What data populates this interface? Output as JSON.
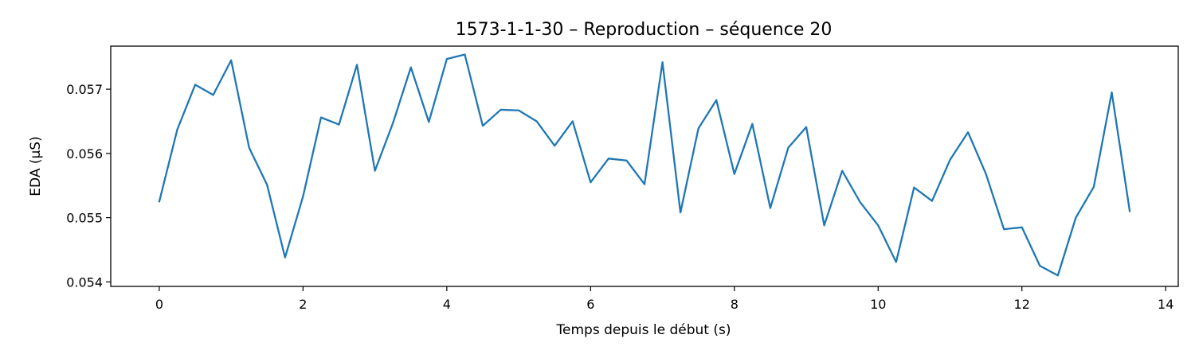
{
  "chart_data": {
    "type": "line",
    "title": "1573-1-1-30 – Reproduction – séquence 20",
    "xlabel": "Temps depuis le début (s)",
    "ylabel": "EDA (µS)",
    "xlim": [
      -0.675,
      14.175
    ],
    "ylim": [
      0.05393,
      0.05767
    ],
    "x_ticks": [
      0,
      2,
      4,
      6,
      8,
      10,
      12,
      14
    ],
    "y_ticks": [
      0.054,
      0.055,
      0.056,
      0.057
    ],
    "x_tick_labels": [
      "0",
      "2",
      "4",
      "6",
      "8",
      "10",
      "12",
      "14"
    ],
    "y_tick_labels": [
      "0.054",
      "0.055",
      "0.056",
      "0.057"
    ],
    "grid": false,
    "series": [
      {
        "color": "#1f77b4",
        "x": [
          0,
          0.25,
          0.5,
          0.75,
          1,
          1.25,
          1.5,
          1.75,
          2,
          2.25,
          2.5,
          2.75,
          3,
          3.25,
          3.5,
          3.75,
          4,
          4.25,
          4.5,
          4.75,
          5,
          5.25,
          5.5,
          5.75,
          6,
          6.25,
          6.5,
          6.75,
          7,
          7.25,
          7.5,
          7.75,
          8,
          8.25,
          8.5,
          8.75,
          9,
          9.25,
          9.5,
          9.75,
          10,
          10.25,
          10.5,
          10.75,
          11,
          11.25,
          11.5,
          11.75,
          12,
          12.25,
          12.5,
          12.75,
          13,
          13.25,
          13.5
        ],
        "values": [
          0.05525,
          0.05637,
          0.05707,
          0.05691,
          0.05745,
          0.05609,
          0.05551,
          0.05438,
          0.05533,
          0.05656,
          0.05645,
          0.05738,
          0.05573,
          0.05647,
          0.05734,
          0.05649,
          0.05747,
          0.05754,
          0.05643,
          0.05668,
          0.05667,
          0.0565,
          0.05612,
          0.0565,
          0.05555,
          0.05592,
          0.05589,
          0.05552,
          0.05742,
          0.05508,
          0.05639,
          0.05683,
          0.05568,
          0.05646,
          0.05515,
          0.05609,
          0.05641,
          0.05488,
          0.05573,
          0.05524,
          0.05488,
          0.05431,
          0.05547,
          0.05526,
          0.0559,
          0.05633,
          0.05568,
          0.05482,
          0.05485,
          0.05425,
          0.0541,
          0.055,
          0.05548,
          0.05695,
          0.0551
        ]
      }
    ]
  }
}
